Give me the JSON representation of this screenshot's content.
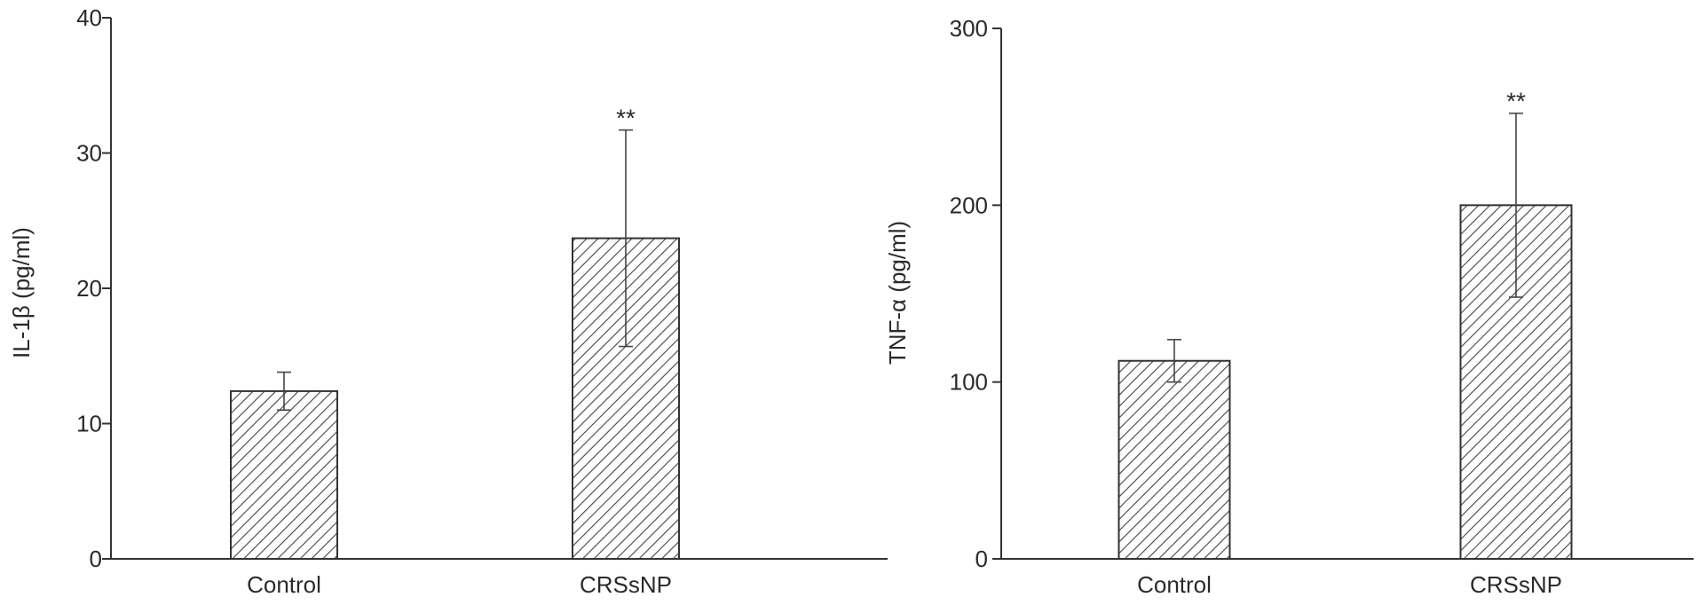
{
  "chart_data": [
    {
      "type": "bar",
      "title": "",
      "xlabel": "",
      "ylabel": "IL-1β (pg/ml)",
      "ylim": [
        0,
        40
      ],
      "yticks": [
        0,
        10,
        20,
        30,
        40
      ],
      "categories": [
        "Control",
        "CRSsNP"
      ],
      "values": [
        12.4,
        23.7
      ],
      "errors": [
        1.4,
        8.0
      ],
      "annotations": [
        "",
        "**"
      ],
      "grid": false,
      "bar_fill": "hatched",
      "colors": {
        "bar_stroke": "#333333",
        "hatch": "#444444",
        "bar_background": "#ffffff"
      }
    },
    {
      "type": "bar",
      "title": "",
      "xlabel": "",
      "ylabel": "TNF-α (pg/ml)",
      "ylim": [
        0,
        300
      ],
      "yticks": [
        0,
        100,
        200,
        300
      ],
      "categories": [
        "Control",
        "CRSsNP"
      ],
      "values": [
        112,
        200
      ],
      "errors": [
        12,
        52
      ],
      "annotations": [
        "",
        "**"
      ],
      "grid": false,
      "bar_fill": "hatched",
      "colors": {
        "bar_stroke": "#333333",
        "hatch": "#444444",
        "bar_background": "#ffffff"
      }
    }
  ]
}
